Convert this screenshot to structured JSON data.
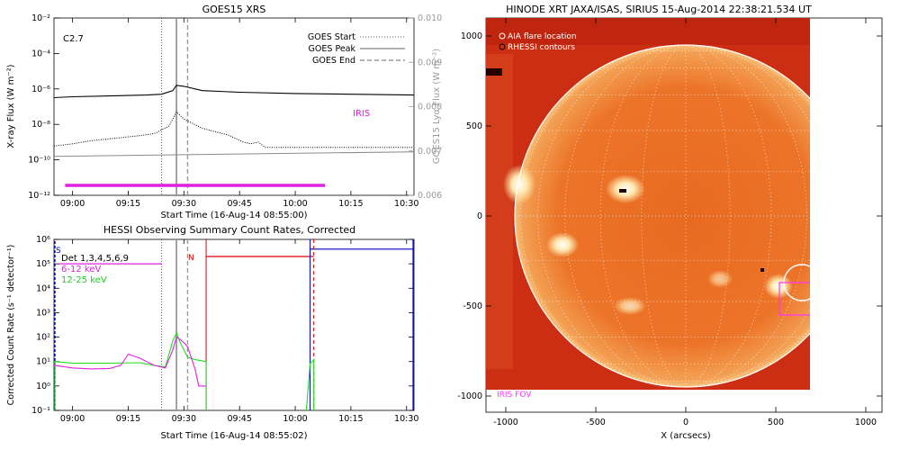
{
  "chart_data": [
    {
      "type": "line",
      "title": "GOES15 XRS",
      "xlabel": "Start Time (16-Aug-14 08:55:00)",
      "ylabel": "X-ray Flux (W m⁻²)",
      "y2label": "GOES15 Lyα Flux (W m⁻²)",
      "x_ticks": [
        "09:00",
        "09:15",
        "09:30",
        "09:45",
        "10:00",
        "10:15",
        "10:30"
      ],
      "xlim": [
        "08:55",
        "10:32"
      ],
      "y_scale": "log",
      "ylim": [
        1e-12,
        0.01
      ],
      "y_ticks": [
        "10⁻¹²",
        "10⁻¹⁰",
        "10⁻⁸",
        "10⁻⁶",
        "10⁻⁴",
        "10⁻²"
      ],
      "y2lim": [
        0.006,
        0.01
      ],
      "y2_ticks": [
        "0.006",
        "0.007",
        "0.008",
        "0.009",
        "0.010"
      ],
      "class_label": "C2.7",
      "iris_label": "IRIS",
      "iris_interval": [
        "08:58",
        "10:08"
      ],
      "legend": [
        {
          "name": "GOES Start",
          "style": "dotted"
        },
        {
          "name": "GOES Peak",
          "style": "solid"
        },
        {
          "name": "GOES End",
          "style": "dashed"
        }
      ],
      "legend_position": "top-right",
      "event_lines": {
        "start": "09:24",
        "peak": "09:28",
        "end": "09:31"
      },
      "series": [
        {
          "key": "long",
          "x": [
            "08:55",
            "09:00",
            "09:10",
            "09:20",
            "09:24",
            "09:27",
            "09:28",
            "09:30",
            "09:35",
            "09:45",
            "10:00",
            "10:15",
            "10:32"
          ],
          "y": [
            3.2e-07,
            3.6e-07,
            4e-07,
            4.5e-07,
            5e-07,
            8e-07,
            1.6e-06,
            1.4e-06,
            8e-07,
            6.5e-07,
            5.5e-07,
            5e-07,
            4.5e-07
          ]
        },
        {
          "key": "short",
          "x": [
            "08:55",
            "09:00",
            "09:05",
            "09:12",
            "09:18",
            "09:22",
            "09:26",
            "09:28",
            "09:30",
            "09:35",
            "09:42",
            "09:46",
            "09:48",
            "09:50",
            "09:52",
            "10:32"
          ],
          "y": [
            6e-10,
            8e-10,
            1.2e-09,
            1.7e-09,
            2.3e-09,
            3e-09,
            8e-09,
            5e-08,
            2e-08,
            6e-09,
            2.5e-09,
            1e-09,
            8e-10,
            1e-09,
            5e-10,
            5e-10
          ]
        },
        {
          "key": "lyman",
          "x": [
            "08:55",
            "10:32"
          ],
          "y": [
            0.00688,
            0.00698
          ]
        }
      ]
    },
    {
      "type": "line",
      "title": "HESSI Observing Summary Count Rates, Corrected",
      "xlabel": "Start Time (16-Aug-14 08:55:02)",
      "ylabel": "Corrected Count Rate (s⁻¹ detector⁻¹)",
      "x_ticks": [
        "09:00",
        "09:15",
        "09:30",
        "09:45",
        "10:00",
        "10:15",
        "10:30"
      ],
      "xlim": [
        "08:55",
        "10:32"
      ],
      "y_scale": "log",
      "ylim": [
        0.1,
        1000000.0
      ],
      "y_ticks": [
        "10⁻¹",
        "10⁰",
        "10¹",
        "10²",
        "10³",
        "10⁴",
        "10⁵",
        "10⁶"
      ],
      "legend": [
        {
          "name": "Det 1,3,4,5,6,9",
          "color": "#000000"
        },
        {
          "name": "6-12 keV",
          "color": "#e020e0"
        },
        {
          "name": "12-25 keV",
          "color": "#20e020"
        }
      ],
      "legend_position": "top-left",
      "flag_labels": {
        "s": "S",
        "n": "N"
      },
      "event_lines": {
        "start": "09:24",
        "peak": "09:28",
        "end": "09:31",
        "night_start": "09:36",
        "night_end": "10:05",
        "saa_start": "10:04",
        "saa_end": "10:32"
      },
      "series": [
        {
          "key": "low",
          "x": [
            "08:55",
            "09:00",
            "09:05",
            "09:10",
            "09:13",
            "09:15",
            "09:18",
            "09:22",
            "09:25",
            "09:27",
            "09:28",
            "09:29",
            "09:30",
            "09:31",
            "09:33",
            "09:34",
            "09:36"
          ],
          "y": [
            7,
            5.5,
            5,
            5.2,
            7,
            20,
            14,
            7,
            5.5,
            30,
            100,
            80,
            60,
            40,
            5,
            1,
            1
          ]
        },
        {
          "key": "high",
          "x": [
            "08:55",
            "09:00",
            "09:10",
            "09:18",
            "09:22",
            "09:25",
            "09:27",
            "09:28",
            "09:29",
            "09:30",
            "09:31",
            "09:33",
            "09:36",
            "10:04",
            "10:05"
          ],
          "y": [
            10,
            8.5,
            8.5,
            9,
            7,
            6,
            70,
            150,
            60,
            30,
            15,
            12,
            10,
            8,
            12
          ]
        }
      ]
    },
    {
      "type": "heatmap",
      "title": "HINODE XRT JAXA/ISAS, SIRIUS 15-Aug-2014 22:38:21.534 UT",
      "xlabel": "X (arcsecs)",
      "x_ticks": [
        "-1000",
        "-500",
        "0",
        "500",
        "1000"
      ],
      "y_ticks": [
        "-1000",
        "-500",
        "0",
        "500",
        "1000"
      ],
      "xlim": [
        -1100,
        1100
      ],
      "ylim": [
        -1100,
        1100
      ],
      "legend": [
        {
          "name": "AIA flare location"
        },
        {
          "name": "RHESSI contours"
        }
      ],
      "legend_position": "top-left",
      "fov_label": "IRIS FOV",
      "solar_radius_arcsec": 950,
      "flare_location": [
        610,
        -370
      ],
      "fov_box": {
        "x": [
          520,
          700
        ],
        "y": [
          -550,
          -370
        ]
      }
    }
  ]
}
